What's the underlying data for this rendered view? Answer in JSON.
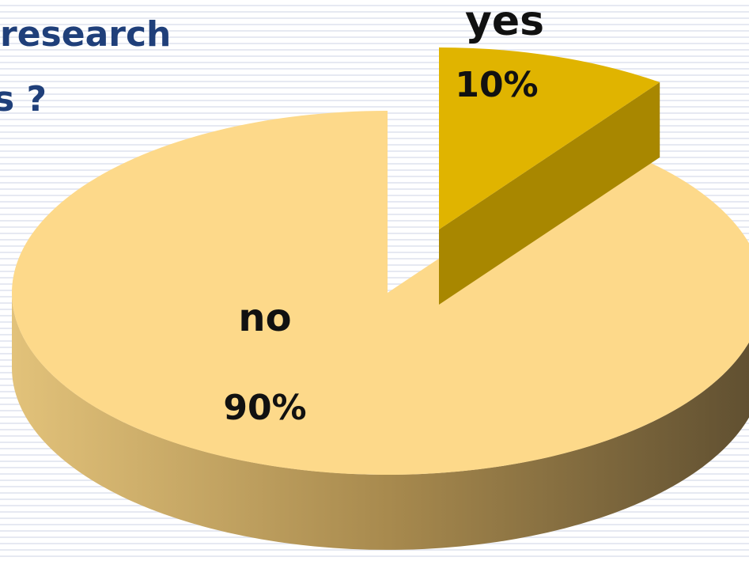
{
  "chart_data": {
    "type": "pie",
    "title_lines": [
      "research",
      "s ?"
    ],
    "categories": [
      "yes",
      "no"
    ],
    "values": [
      10,
      90
    ],
    "value_labels": [
      "10%",
      "90%"
    ],
    "colors": [
      "#e0b400",
      "#fdd98a"
    ],
    "explode": [
      true,
      false
    ]
  }
}
